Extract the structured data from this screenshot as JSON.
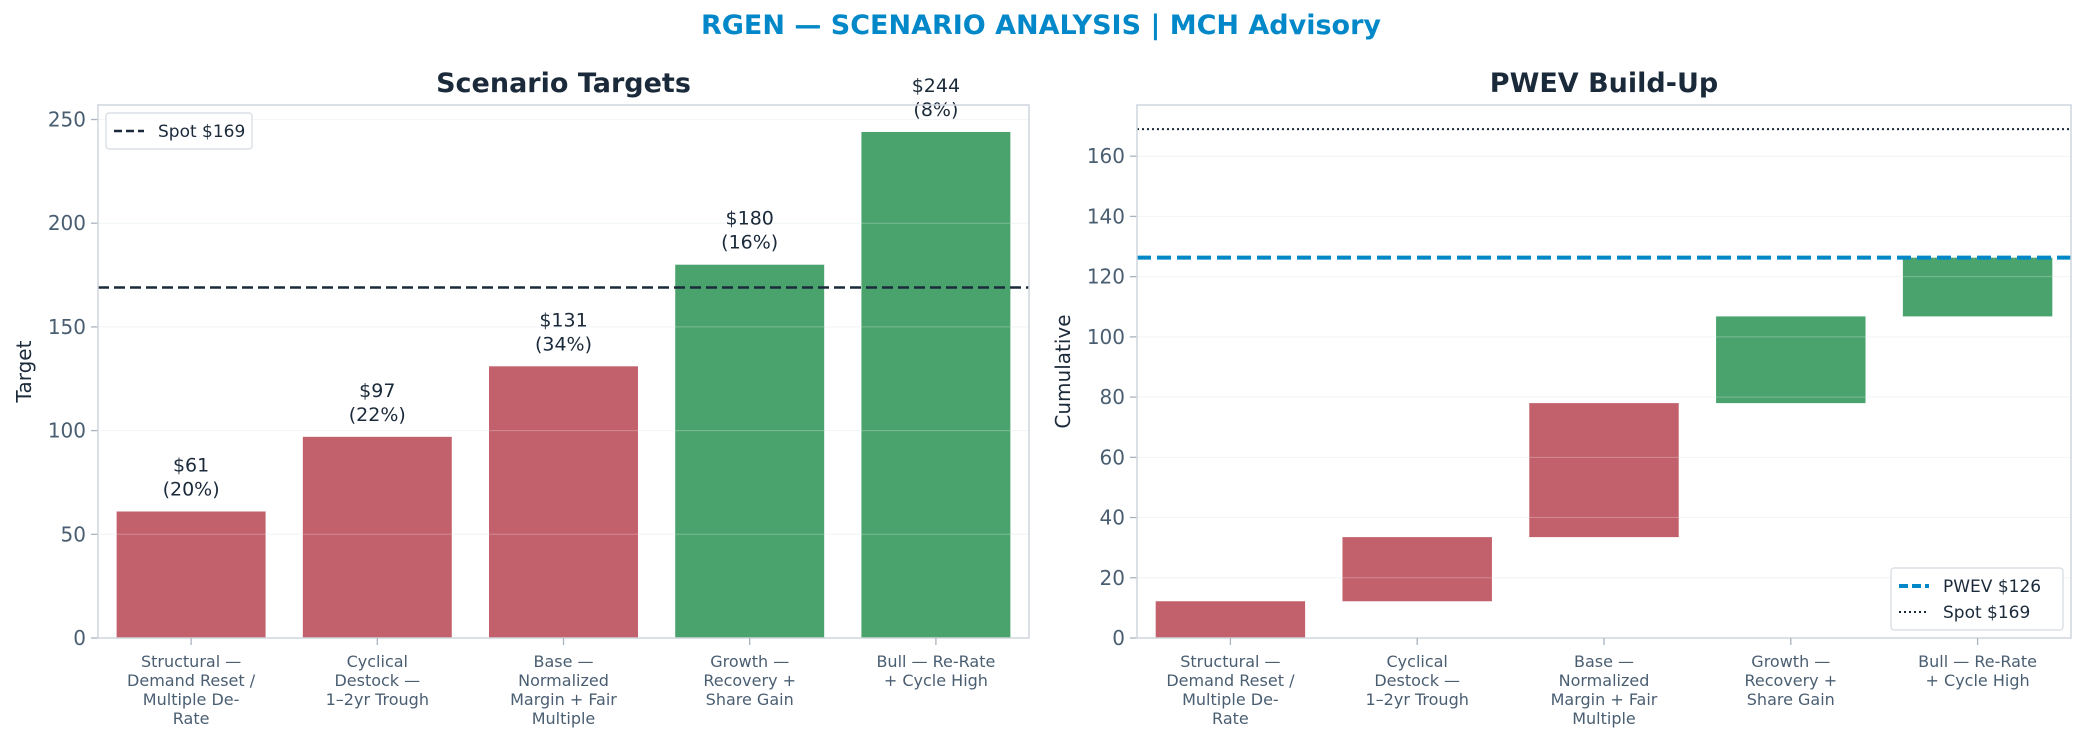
{
  "suptitle": "RGEN — SCENARIO ANALYSIS | MCH Advisory",
  "colors": {
    "title": "#0288c8",
    "heading": "#1b2a3a",
    "bear": "#c2606b",
    "bull": "#4aa36c",
    "pwev": "#0288c8",
    "spot": "#1b2a3a",
    "axis": "#cfd6de",
    "tick_text": "#4a5e72"
  },
  "chart_data": [
    {
      "type": "bar",
      "title": "Scenario Targets",
      "xlabel": "",
      "ylabel": "Target",
      "categories": [
        "Structural — Demand Reset / Multiple De-Rate",
        "Cyclical Destock — 1–2yr Trough",
        "Base — Normalized Margin + Fair Multiple",
        "Growth — Recovery + Share Gain",
        "Bull — Re-Rate + Cycle High"
      ],
      "category_lines": [
        [
          "Structural —",
          "Demand Reset /",
          "Multiple De-",
          "Rate"
        ],
        [
          "Cyclical",
          "Destock —",
          "1–2yr Trough"
        ],
        [
          "Base —",
          "Normalized",
          "Margin + Fair",
          "Multiple"
        ],
        [
          "Growth —",
          "Recovery +",
          "Share Gain"
        ],
        [
          "Bull — Re-Rate",
          "+ Cycle High"
        ]
      ],
      "values": [
        61,
        97,
        131,
        180,
        244
      ],
      "probabilities": [
        "20%",
        "22%",
        "34%",
        "16%",
        "8%"
      ],
      "bar_labels": [
        [
          "$61",
          "(20%)"
        ],
        [
          "$97",
          "(22%)"
        ],
        [
          "$131",
          "(34%)"
        ],
        [
          "$180",
          "(16%)"
        ],
        [
          "$244",
          "(8%)"
        ]
      ],
      "bar_colors": [
        "bear",
        "bear",
        "bear",
        "bull",
        "bull"
      ],
      "ylim": [
        0,
        257
      ],
      "yticks": [
        0,
        50,
        100,
        150,
        200,
        250
      ],
      "reference_lines": [
        {
          "name": "Spot $169",
          "value": 169,
          "style": "dashed"
        }
      ],
      "legend": {
        "placement": "top-left",
        "entries": [
          "Spot $169"
        ]
      },
      "grid": true
    },
    {
      "type": "bar",
      "subtype": "waterfall",
      "title": "PWEV Build-Up",
      "xlabel": "",
      "ylabel": "Cumulative",
      "categories": [
        "Structural — Demand Reset / Multiple De-Rate",
        "Cyclical Destock — 1–2yr Trough",
        "Base — Normalized Margin + Fair Multiple",
        "Growth — Recovery + Share Gain",
        "Bull — Re-Rate + Cycle High"
      ],
      "category_lines": [
        [
          "Structural —",
          "Demand Reset /",
          "Multiple De-",
          "Rate"
        ],
        [
          "Cyclical",
          "Destock —",
          "1–2yr Trough"
        ],
        [
          "Base —",
          "Normalized",
          "Margin + Fair",
          "Multiple"
        ],
        [
          "Growth —",
          "Recovery +",
          "Share Gain"
        ],
        [
          "Bull — Re-Rate",
          "+ Cycle High"
        ]
      ],
      "bar_colors": [
        "bear",
        "bear",
        "bear",
        "bull",
        "bull"
      ],
      "base": [
        0,
        12.2,
        33.5,
        78.0,
        106.8
      ],
      "increment": [
        12.2,
        21.3,
        44.5,
        28.8,
        19.5
      ],
      "cumulative": [
        12.2,
        33.5,
        78.0,
        106.8,
        126.3
      ],
      "ylim": [
        0,
        177
      ],
      "yticks": [
        0,
        20,
        40,
        60,
        80,
        100,
        120,
        140,
        160
      ],
      "reference_lines": [
        {
          "name": "PWEV $126",
          "value": 126.3,
          "style": "dashed"
        },
        {
          "name": "Spot $169",
          "value": 169,
          "style": "dotted"
        }
      ],
      "legend": {
        "placement": "bottom-right",
        "entries": [
          "PWEV $126",
          "Spot $169"
        ]
      },
      "grid": true
    }
  ]
}
